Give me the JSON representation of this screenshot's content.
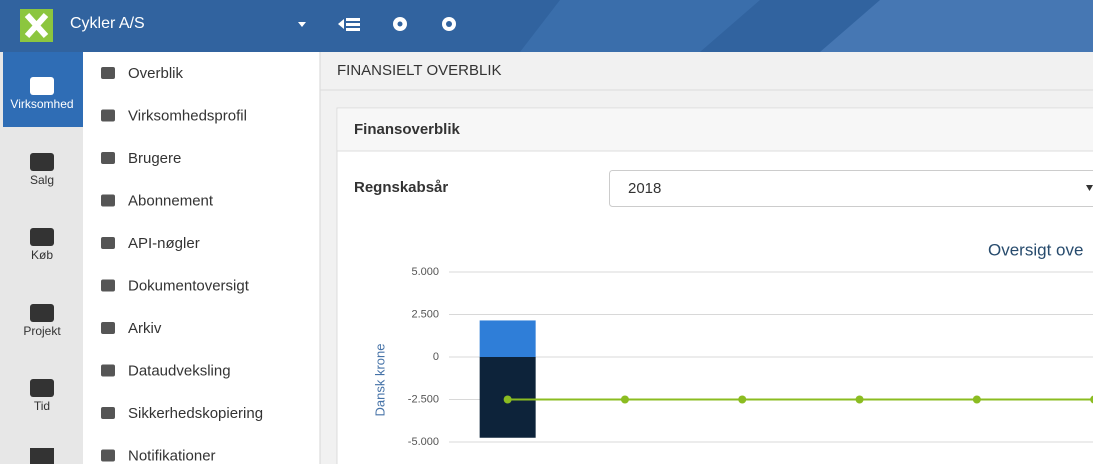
{
  "topbar": {
    "company": "Cykler A/S"
  },
  "sidebar": {
    "items": [
      "Virksomhed",
      "Salg",
      "Køb",
      "Projekt",
      "Tid"
    ]
  },
  "menu": {
    "items": [
      "Overblik",
      "Virksomhedsprofil",
      "Brugere",
      "Abonnement",
      "API-nøgler",
      "Dokumentoversigt",
      "Arkiv",
      "Dataudveksling",
      "Sikkerhedskopiering",
      "Notifikationer"
    ]
  },
  "page": {
    "title": "FINANSIELT OVERBLIK"
  },
  "panel": {
    "title": "Finansoverblik",
    "field_label": "Regnskabsår",
    "field_value": "2018"
  },
  "chart_data": {
    "type": "bar",
    "title": "Oversigt ove",
    "y_label": "Dansk krone",
    "categories": [
      null,
      null,
      null,
      null,
      null,
      null
    ],
    "series": [
      {
        "color": "#2f7ed8",
        "values": [
          2150,
          null,
          null,
          null,
          null,
          null
        ]
      },
      {
        "color": "#0d233a",
        "values": [
          -4750,
          null,
          null,
          null,
          null,
          null
        ]
      },
      {
        "type": "line",
        "color": "#8bbc21",
        "values": [
          -2500,
          -2500,
          -2500,
          -2500,
          -2500,
          -2500
        ]
      }
    ],
    "ylim": [
      -5000,
      5000
    ],
    "yticks": [
      {
        "value": -5000,
        "label": "-5.000"
      },
      {
        "value": -2500,
        "label": "-2.500"
      },
      0,
      {
        "value": 2500,
        "label": "2.500"
      },
      {
        "value": 5000,
        "label": "5.000"
      }
    ],
    "grid": true
  }
}
